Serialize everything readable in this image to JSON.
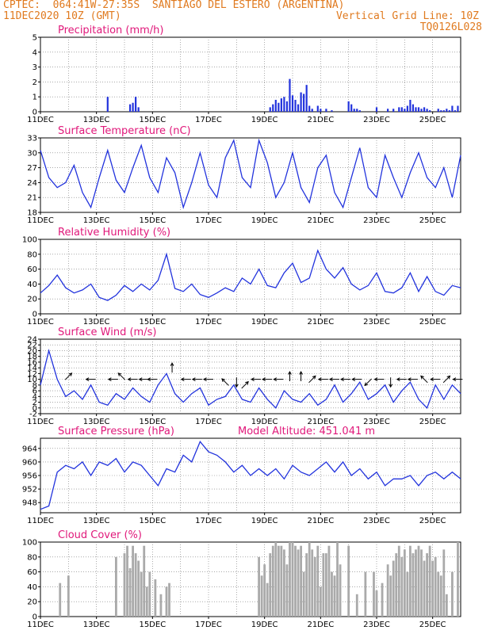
{
  "header": {
    "line1_left": "CPTEC:  064:41W-27:35S  SANTIAGO DEL ESTERO (ARGENTINA)",
    "line2_left": "11DEC2020 10Z (GMT)",
    "line2_right": "Vertical Grid Line: 10Z",
    "line3_right": "TQ0126L028"
  },
  "x_labels": [
    "11DEC",
    "13DEC",
    "15DEC",
    "17DEC",
    "19DEC",
    "21DEC",
    "23DEC",
    "25DEC"
  ],
  "colors": {
    "line": "#2233dd",
    "bar": "#2233dd",
    "cloud": "#aaaaaa",
    "title": "#e0187a",
    "header": "#e07a1f"
  },
  "chart_data": [
    {
      "type": "bar",
      "title": "Precipitation (mm/h)",
      "ylim": [
        0,
        5
      ],
      "yticks": [
        0,
        1,
        2,
        3,
        4,
        5
      ],
      "x": [
        2.4,
        3.2,
        3.3,
        3.4,
        3.5,
        8.2,
        8.3,
        8.4,
        8.5,
        8.6,
        8.7,
        8.8,
        8.9,
        9.0,
        9.1,
        9.2,
        9.3,
        9.4,
        9.5,
        9.6,
        9.7,
        9.9,
        10.0,
        10.2,
        10.4,
        11.0,
        11.1,
        11.2,
        11.3,
        11.4,
        12.0,
        12.4,
        12.6,
        12.8,
        12.9,
        13.0,
        13.1,
        13.2,
        13.3,
        13.4,
        13.5,
        13.6,
        13.7,
        13.8,
        13.9,
        14.2,
        14.3,
        14.4,
        14.5,
        14.6,
        14.7,
        14.8,
        14.9
      ],
      "values": [
        1.0,
        0.5,
        0.6,
        1.0,
        0.3,
        0.3,
        0.5,
        0.8,
        0.6,
        0.9,
        1.0,
        0.7,
        2.2,
        1.1,
        0.8,
        0.5,
        1.3,
        1.2,
        1.8,
        0.4,
        0.2,
        0.4,
        0.2,
        0.2,
        0.1,
        0.7,
        0.5,
        0.2,
        0.2,
        0.1,
        0.3,
        0.2,
        0.2,
        0.3,
        0.3,
        0.2,
        0.4,
        0.8,
        0.5,
        0.3,
        0.3,
        0.2,
        0.3,
        0.2,
        0.1,
        0.2,
        0.1,
        0.1,
        0.2,
        0.1,
        0.4,
        0.1,
        0.4
      ]
    },
    {
      "type": "line",
      "title": "Surface Temperature (nC)",
      "ylim": [
        18,
        33
      ],
      "yticks": [
        18,
        21,
        24,
        27,
        30,
        33
      ],
      "x": [
        0,
        0.3,
        0.6,
        0.9,
        1.2,
        1.5,
        1.8,
        2.1,
        2.4,
        2.7,
        3.0,
        3.3,
        3.6,
        3.9,
        4.2,
        4.5,
        4.8,
        5.1,
        5.4,
        5.7,
        6.0,
        6.3,
        6.6,
        6.9,
        7.2,
        7.5,
        7.8,
        8.1,
        8.4,
        8.7,
        9.0,
        9.3,
        9.6,
        9.9,
        10.2,
        10.5,
        10.8,
        11.1,
        11.4,
        11.7,
        12.0,
        12.3,
        12.6,
        12.9,
        13.2,
        13.5,
        13.8,
        14.1,
        14.4,
        14.7,
        15.0
      ],
      "values": [
        30.5,
        25,
        23,
        24,
        27.5,
        22,
        19,
        25,
        30.5,
        24.5,
        22,
        27,
        31.5,
        25,
        22,
        29,
        26,
        19,
        24,
        30,
        23.5,
        21,
        29,
        32.5,
        25,
        23,
        32.5,
        28,
        21,
        24,
        30,
        23,
        20,
        27,
        29.5,
        22,
        19,
        25,
        31,
        23,
        21,
        29.5,
        25,
        21,
        26,
        30,
        25,
        23,
        27,
        21,
        29.5
      ]
    },
    {
      "type": "line",
      "title": "Relative Humidity (%)",
      "ylim": [
        0,
        100
      ],
      "yticks": [
        0,
        20,
        40,
        60,
        80,
        100
      ],
      "x": [
        0,
        0.3,
        0.6,
        0.9,
        1.2,
        1.5,
        1.8,
        2.1,
        2.4,
        2.7,
        3.0,
        3.3,
        3.6,
        3.9,
        4.2,
        4.5,
        4.8,
        5.1,
        5.4,
        5.7,
        6.0,
        6.3,
        6.6,
        6.9,
        7.2,
        7.5,
        7.8,
        8.1,
        8.4,
        8.7,
        9.0,
        9.3,
        9.6,
        9.9,
        10.2,
        10.5,
        10.8,
        11.1,
        11.4,
        11.7,
        12.0,
        12.3,
        12.6,
        12.9,
        13.2,
        13.5,
        13.8,
        14.1,
        14.4,
        14.7,
        15.0
      ],
      "values": [
        28,
        38,
        52,
        35,
        28,
        32,
        40,
        22,
        18,
        25,
        38,
        30,
        40,
        32,
        45,
        80,
        34,
        30,
        40,
        26,
        22,
        28,
        35,
        30,
        48,
        40,
        60,
        38,
        35,
        55,
        68,
        42,
        48,
        85,
        60,
        48,
        62,
        40,
        32,
        38,
        55,
        30,
        28,
        35,
        55,
        30,
        50,
        30,
        25,
        38,
        35
      ]
    },
    {
      "type": "line",
      "title": "Surface Wind (m/s)",
      "ylim": [
        -2,
        24
      ],
      "yticks": [
        -2,
        0,
        2,
        4,
        6,
        8,
        10,
        12,
        14,
        16,
        18,
        20,
        22,
        24
      ],
      "x": [
        0,
        0.3,
        0.6,
        0.9,
        1.2,
        1.5,
        1.8,
        2.1,
        2.4,
        2.7,
        3.0,
        3.3,
        3.6,
        3.9,
        4.2,
        4.5,
        4.8,
        5.1,
        5.4,
        5.7,
        6.0,
        6.3,
        6.6,
        6.9,
        7.2,
        7.5,
        7.8,
        8.1,
        8.4,
        8.7,
        9.0,
        9.3,
        9.6,
        9.9,
        10.2,
        10.5,
        10.8,
        11.1,
        11.4,
        11.7,
        12.0,
        12.3,
        12.6,
        12.9,
        13.2,
        13.5,
        13.8,
        14.1,
        14.4,
        14.7,
        15.0
      ],
      "values": [
        8,
        20,
        10,
        4,
        6,
        3,
        8,
        2,
        1,
        5,
        3,
        7,
        4,
        2,
        8,
        12,
        5,
        2,
        5,
        7,
        1,
        3,
        4,
        8,
        3,
        2,
        7,
        3,
        0,
        6,
        3,
        2,
        5,
        1,
        3,
        8,
        2,
        5,
        9,
        3,
        5,
        8,
        2,
        6,
        9,
        3,
        0,
        8,
        3,
        8,
        5
      ],
      "arrows": [
        {
          "x": 1.0,
          "y": 11,
          "dir": "NE"
        },
        {
          "x": 1.8,
          "y": 10,
          "dir": "W"
        },
        {
          "x": 2.6,
          "y": 10,
          "dir": "W"
        },
        {
          "x": 2.9,
          "y": 11,
          "dir": "NW"
        },
        {
          "x": 3.3,
          "y": 10,
          "dir": "W"
        },
        {
          "x": 3.7,
          "y": 10,
          "dir": "W"
        },
        {
          "x": 4.0,
          "y": 10,
          "dir": "W"
        },
        {
          "x": 4.7,
          "y": 14,
          "dir": "N"
        },
        {
          "x": 5.2,
          "y": 10,
          "dir": "W"
        },
        {
          "x": 5.6,
          "y": 10,
          "dir": "W"
        },
        {
          "x": 6.0,
          "y": 10,
          "dir": "W"
        },
        {
          "x": 6.6,
          "y": 9,
          "dir": "NW"
        },
        {
          "x": 7.0,
          "y": 9,
          "dir": "S"
        },
        {
          "x": 7.3,
          "y": 8,
          "dir": "NE"
        },
        {
          "x": 7.7,
          "y": 10,
          "dir": "W"
        },
        {
          "x": 8.1,
          "y": 10,
          "dir": "W"
        },
        {
          "x": 8.5,
          "y": 10,
          "dir": "W"
        },
        {
          "x": 8.9,
          "y": 11,
          "dir": "N"
        },
        {
          "x": 9.3,
          "y": 11,
          "dir": "N"
        },
        {
          "x": 9.7,
          "y": 10,
          "dir": "NE"
        },
        {
          "x": 10.1,
          "y": 10,
          "dir": "W"
        },
        {
          "x": 10.5,
          "y": 10,
          "dir": "W"
        },
        {
          "x": 10.9,
          "y": 10,
          "dir": "W"
        },
        {
          "x": 11.3,
          "y": 10,
          "dir": "W"
        },
        {
          "x": 11.7,
          "y": 9,
          "dir": "SW"
        },
        {
          "x": 12.1,
          "y": 10,
          "dir": "W"
        },
        {
          "x": 12.5,
          "y": 9,
          "dir": "S"
        },
        {
          "x": 12.9,
          "y": 10,
          "dir": "W"
        },
        {
          "x": 13.3,
          "y": 10,
          "dir": "W"
        },
        {
          "x": 13.7,
          "y": 10,
          "dir": "NW"
        },
        {
          "x": 14.1,
          "y": 10,
          "dir": "W"
        },
        {
          "x": 14.5,
          "y": 10,
          "dir": "NE"
        },
        {
          "x": 14.9,
          "y": 10,
          "dir": "W"
        }
      ]
    },
    {
      "type": "line",
      "title": "Surface Pressure (hPa)",
      "annotation": "Model Altitude: 451.041 m",
      "ylim": [
        945,
        967
      ],
      "yticks": [
        948,
        952,
        956,
        960,
        964
      ],
      "x": [
        0,
        0.3,
        0.6,
        0.9,
        1.2,
        1.5,
        1.8,
        2.1,
        2.4,
        2.7,
        3.0,
        3.3,
        3.6,
        3.9,
        4.2,
        4.5,
        4.8,
        5.1,
        5.4,
        5.7,
        6.0,
        6.3,
        6.6,
        6.9,
        7.2,
        7.5,
        7.8,
        8.1,
        8.4,
        8.7,
        9.0,
        9.3,
        9.6,
        9.9,
        10.2,
        10.5,
        10.8,
        11.1,
        11.4,
        11.7,
        12.0,
        12.3,
        12.6,
        12.9,
        13.2,
        13.5,
        13.8,
        14.1,
        14.4,
        14.7,
        15.0
      ],
      "values": [
        946,
        947,
        957,
        959,
        958,
        960,
        956,
        960,
        959,
        961,
        957,
        960,
        959,
        956,
        953,
        958,
        957,
        962,
        960,
        966,
        963,
        962,
        960,
        957,
        959,
        956,
        958,
        956,
        958,
        955,
        959,
        957,
        956,
        958,
        960,
        957,
        960,
        956,
        958,
        955,
        957,
        953,
        955,
        955,
        956,
        953,
        956,
        957,
        955,
        957,
        955
      ]
    },
    {
      "type": "bar",
      "title": "Cloud Cover (%)",
      "ylim": [
        0,
        100
      ],
      "yticks": [
        0,
        20,
        40,
        60,
        80,
        100
      ],
      "x": [
        0.7,
        1.0,
        2.7,
        3.0,
        3.1,
        3.2,
        3.3,
        3.4,
        3.5,
        3.6,
        3.7,
        3.8,
        3.9,
        4.1,
        4.3,
        4.5,
        4.6,
        7.8,
        7.9,
        8.0,
        8.1,
        8.2,
        8.3,
        8.4,
        8.5,
        8.6,
        8.7,
        8.8,
        8.9,
        9.0,
        9.1,
        9.2,
        9.3,
        9.4,
        9.5,
        9.6,
        9.7,
        9.8,
        9.9,
        10.0,
        10.1,
        10.2,
        10.3,
        10.4,
        10.5,
        10.6,
        10.7,
        11.0,
        11.3,
        11.6,
        11.9,
        12.0,
        12.2,
        12.4,
        12.5,
        12.6,
        12.7,
        12.8,
        12.9,
        13.0,
        13.1,
        13.2,
        13.3,
        13.4,
        13.5,
        13.6,
        13.7,
        13.8,
        13.9,
        14.0,
        14.1,
        14.2,
        14.3,
        14.4,
        14.5,
        14.7,
        14.9
      ],
      "values": [
        45,
        55,
        80,
        85,
        95,
        65,
        95,
        85,
        75,
        60,
        95,
        40,
        60,
        50,
        30,
        40,
        45,
        80,
        55,
        70,
        45,
        85,
        95,
        100,
        95,
        95,
        90,
        70,
        100,
        100,
        95,
        90,
        95,
        60,
        85,
        100,
        90,
        80,
        95,
        40,
        85,
        85,
        95,
        60,
        55,
        100,
        70,
        95,
        30,
        60,
        60,
        35,
        45,
        70,
        55,
        75,
        85,
        95,
        80,
        90,
        60,
        95,
        85,
        90,
        95,
        90,
        75,
        85,
        95,
        75,
        80,
        60,
        55,
        90,
        30,
        60,
        100
      ]
    }
  ]
}
